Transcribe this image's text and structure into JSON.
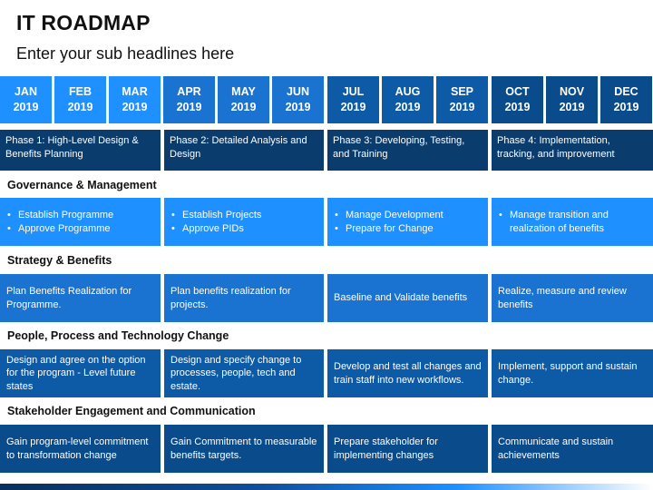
{
  "title": "IT ROADMAP",
  "subtitle": "Enter your sub headlines here",
  "months": [
    {
      "name": "JAN",
      "year": "2019"
    },
    {
      "name": "FEB",
      "year": "2019"
    },
    {
      "name": "MAR",
      "year": "2019"
    },
    {
      "name": "APR",
      "year": "2019"
    },
    {
      "name": "MAY",
      "year": "2019"
    },
    {
      "name": "JUN",
      "year": "2019"
    },
    {
      "name": "JUL",
      "year": "2019"
    },
    {
      "name": "AUG",
      "year": "2019"
    },
    {
      "name": "SEP",
      "year": "2019"
    },
    {
      "name": "OCT",
      "year": "2019"
    },
    {
      "name": "NOV",
      "year": "2019"
    },
    {
      "name": "DEC",
      "year": "2019"
    }
  ],
  "phases": [
    {
      "line1": "Phase 1: High-Level Design &",
      "line2": "Benefits Planning"
    },
    {
      "line1": "Phase 2: Detailed Analysis and",
      "line2": "Design"
    },
    {
      "line1": "Phase 3: Developing, Testing,",
      "line2": "and Training"
    },
    {
      "line1": "Phase 4: Implementation,",
      "line2": "tracking, and improvement"
    }
  ],
  "sections": [
    {
      "heading": "Governance & Management",
      "cells": [
        {
          "bullets": [
            "Establish Programme",
            "Approve Programme"
          ]
        },
        {
          "bullets": [
            "Establish Projects",
            "Approve PIDs"
          ]
        },
        {
          "bullets": [
            "Manage Development",
            "Prepare for Change"
          ]
        },
        {
          "bullets": [
            "Manage transition and realization of benefits"
          ]
        }
      ]
    },
    {
      "heading": "Strategy & Benefits",
      "cells": [
        {
          "text": "Plan Benefits Realization for Programme."
        },
        {
          "text": "Plan benefits realization for projects."
        },
        {
          "text": "Baseline and Validate benefits"
        },
        {
          "text": "Realize, measure and review benefits"
        }
      ]
    },
    {
      "heading": "People, Process and Technology Change",
      "cells": [
        {
          "text": "Design and agree on the option for the program - Level future states"
        },
        {
          "text": "Design and specify change to processes, people, tech and estate."
        },
        {
          "text": "Develop and test all changes and train staff into new workflows."
        },
        {
          "text": "Implement, support and sustain change."
        }
      ]
    },
    {
      "heading": "Stakeholder Engagement and Communication",
      "cells": [
        {
          "text": "Gain program-level commitment to transformation change"
        },
        {
          "text": "Gain Commitment to measurable benefits targets."
        },
        {
          "text": "Prepare stakeholder for implementing changes"
        },
        {
          "text": "Communicate and sustain achievements"
        }
      ]
    }
  ],
  "colors": {
    "q1": "#1e90ff",
    "q2": "#1a73d1",
    "q3": "#0d5aa7",
    "q4": "#0a4b8c",
    "phase": "#0b3c6e",
    "section1": "#1e90ff",
    "section2": "#1a73d1",
    "section3": "#0d5aa7",
    "section4": "#0a4b8c"
  }
}
